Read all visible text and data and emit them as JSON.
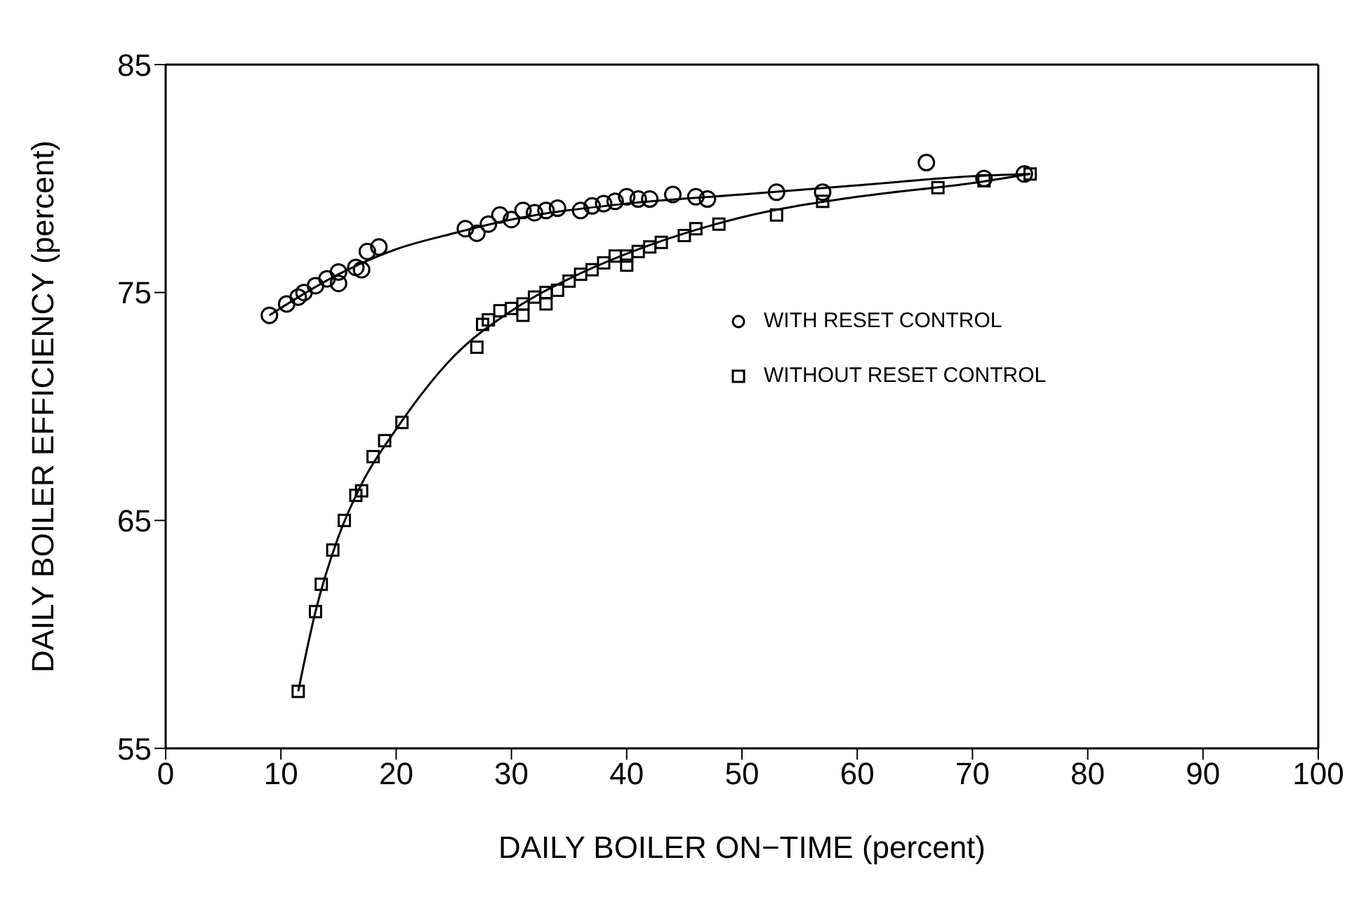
{
  "chart_data": {
    "type": "scatter",
    "xlabel": "DAILY BOILER ON−TIME (percent)",
    "ylabel": "DAILY BOILER EFFICIENCY (percent)",
    "xlim": [
      0,
      100
    ],
    "xticks": [
      0,
      10,
      20,
      30,
      40,
      50,
      60,
      70,
      80,
      90,
      100
    ],
    "ylim": [
      55,
      85
    ],
    "yticks": [
      55,
      65,
      75,
      85
    ],
    "legend": "right",
    "series": [
      {
        "name": "WITH RESET CONTROL",
        "color": "#000000",
        "marker": "circle",
        "x": [
          9,
          10.5,
          11.5,
          12,
          13,
          14,
          15,
          15,
          16.5,
          17,
          17.5,
          18.5,
          26,
          27,
          28,
          29,
          30,
          31,
          32,
          33,
          34,
          36,
          37,
          38,
          39,
          40,
          41,
          42,
          44,
          46,
          47,
          53,
          57,
          66,
          71,
          74.5
        ],
        "values": [
          74.0,
          74.5,
          74.8,
          75.0,
          75.3,
          75.6,
          75.9,
          75.4,
          76.1,
          76.0,
          76.8,
          77.0,
          77.8,
          77.6,
          78.0,
          78.4,
          78.2,
          78.6,
          78.5,
          78.6,
          78.7,
          78.6,
          78.8,
          78.9,
          79.0,
          79.2,
          79.1,
          79.1,
          79.3,
          79.2,
          79.1,
          79.4,
          79.4,
          80.7,
          80.0,
          80.2
        ]
      },
      {
        "name": "WITHOUT RESET CONTROL",
        "color": "#000000",
        "marker": "square",
        "x": [
          11.5,
          13,
          13.5,
          14.5,
          15.5,
          16.5,
          17,
          18,
          19,
          20.5,
          27,
          27.5,
          28,
          29,
          30,
          31,
          31,
          32,
          33,
          33,
          34,
          35,
          36,
          37,
          38,
          39,
          40,
          40,
          41,
          42,
          43,
          45,
          46,
          48,
          53,
          57,
          67,
          71,
          75
        ],
        "values": [
          57.5,
          61.0,
          62.2,
          63.7,
          65.0,
          66.1,
          66.3,
          67.8,
          68.5,
          69.3,
          72.6,
          73.6,
          73.8,
          74.2,
          74.3,
          74.5,
          74.0,
          74.8,
          75.0,
          74.5,
          75.1,
          75.5,
          75.8,
          76.0,
          76.3,
          76.6,
          76.6,
          76.2,
          76.8,
          77.0,
          77.2,
          77.5,
          77.8,
          78.0,
          78.4,
          79.0,
          79.6,
          79.9,
          80.2
        ]
      },
      {
        "type": "line",
        "color": "#000000",
        "marker": "none",
        "line_style": "solid",
        "x": [
          9,
          15,
          20,
          25,
          30,
          40,
          50,
          60,
          70,
          75
        ],
        "values": [
          74.0,
          75.8,
          76.9,
          77.6,
          78.2,
          78.9,
          79.3,
          79.7,
          80.1,
          80.2
        ]
      },
      {
        "type": "line",
        "color": "#000000",
        "marker": "none",
        "line_style": "solid",
        "x": [
          11.5,
          13,
          15,
          17,
          20,
          25,
          30,
          35,
          40,
          50,
          60,
          70,
          75
        ],
        "values": [
          57.5,
          61.0,
          64.3,
          66.6,
          69.0,
          72.2,
          74.2,
          75.6,
          76.7,
          78.3,
          79.2,
          79.8,
          80.2
        ]
      }
    ]
  }
}
